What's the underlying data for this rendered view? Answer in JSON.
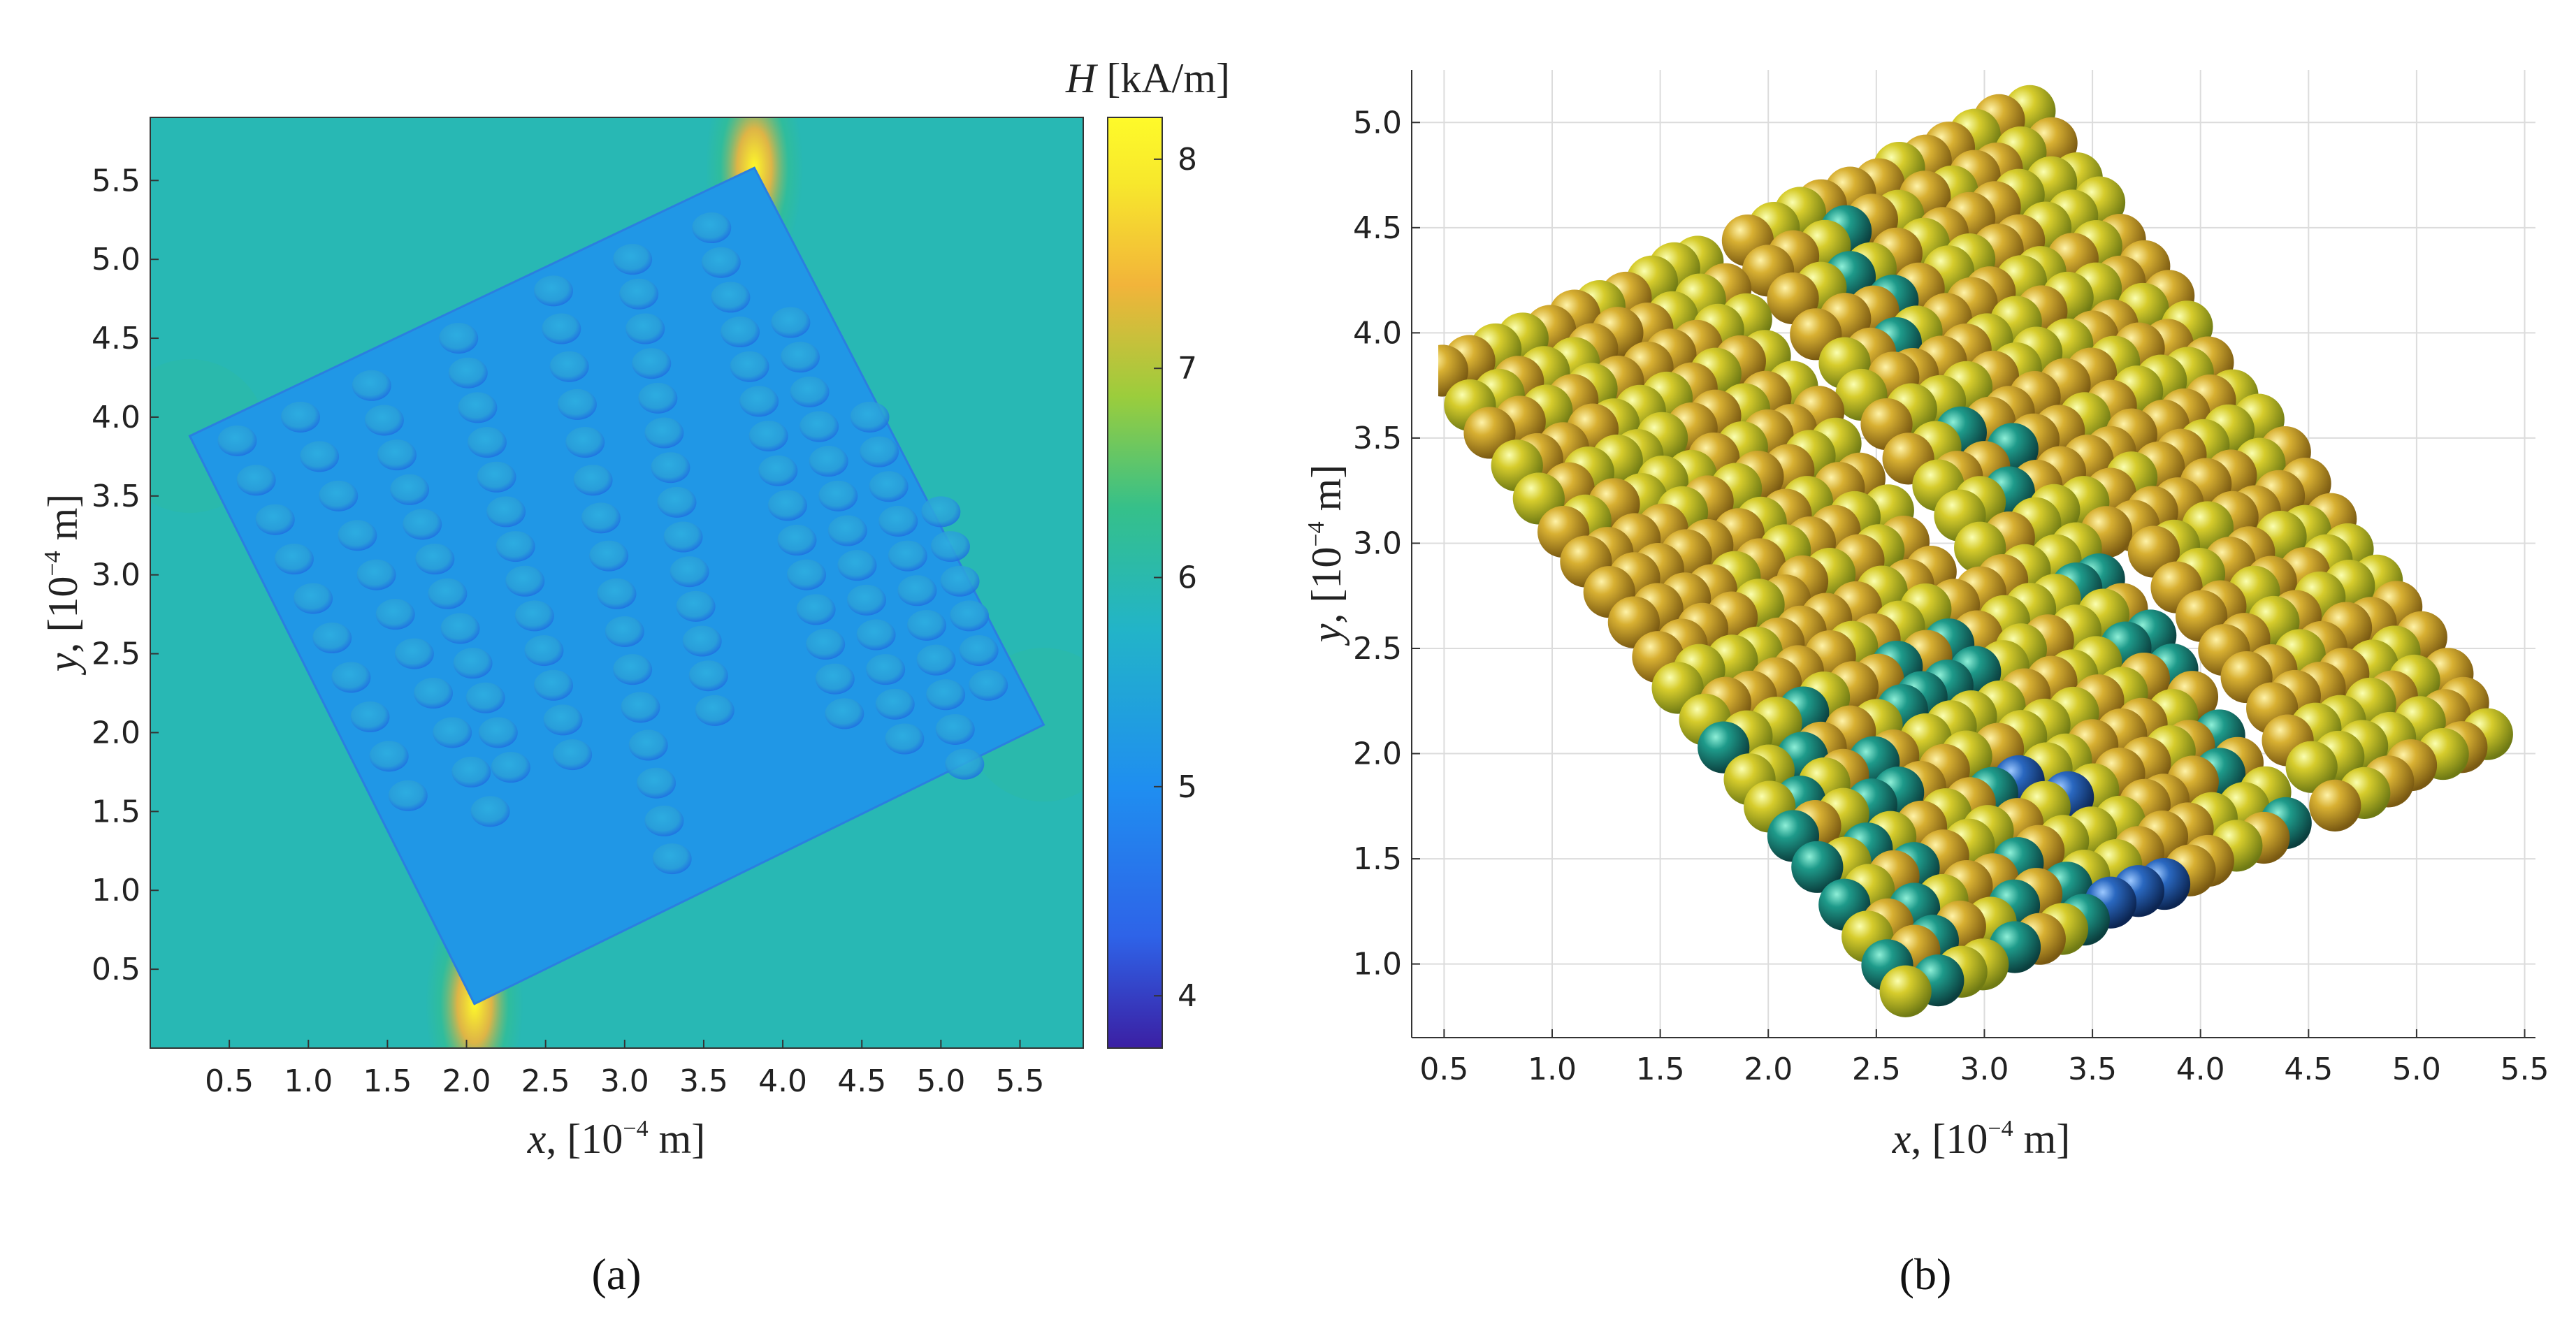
{
  "chart_data": [
    {
      "id": "a",
      "type": "heatmap",
      "panel_label": "(a)",
      "title": "",
      "xlabel": {
        "var": "x",
        "prefix": ", [10",
        "exp": "−4",
        "suffix": " m]"
      },
      "ylabel": {
        "var": "y",
        "prefix": ", [10",
        "exp": "−4",
        "suffix": " m]"
      },
      "xlim": [
        0,
        5.9
      ],
      "ylim": [
        0,
        5.9
      ],
      "xticks": [
        "0.5",
        "1.0",
        "1.5",
        "2.0",
        "2.5",
        "3.0",
        "3.5",
        "4.0",
        "4.5",
        "5.0",
        "5.5"
      ],
      "yticks": [
        "0.5",
        "1.0",
        "1.5",
        "2.0",
        "2.5",
        "3.0",
        "3.5",
        "4.0",
        "4.5",
        "5.0",
        "5.5"
      ],
      "colorbar": {
        "label_var": "H",
        "label_unit": "[kA/m]",
        "min": 3.75,
        "max": 8.2,
        "ticks": [
          "4",
          "5",
          "6",
          "7",
          "8"
        ],
        "colormap": [
          "#3b1fa3",
          "#2e63e8",
          "#1f8ef0",
          "#22b4c8",
          "#35c08a",
          "#9bcd3c",
          "#f2b43a",
          "#f7e82c",
          "#fefa2a"
        ]
      },
      "background_field_kA_per_m": 5.6,
      "particle_field_kA_per_m": 5.0,
      "corner_field_peak_kA_per_m": 7.6,
      "particle_square_corners": [
        [
          0.25,
          3.88
        ],
        [
          3.82,
          5.58
        ],
        [
          5.65,
          2.05
        ],
        [
          2.05,
          0.28
        ]
      ],
      "particle_columns": [
        {
          "x_start": 0.55,
          "y_start": 3.85,
          "count": 10,
          "dx": 0.12,
          "dy": -0.25
        },
        {
          "x_start": 0.95,
          "y_start": 4.0,
          "count": 11,
          "dx": 0.12,
          "dy": -0.25
        },
        {
          "x_start": 1.4,
          "y_start": 4.2,
          "count": 12,
          "dx": 0.08,
          "dy": -0.22
        },
        {
          "x_start": 1.95,
          "y_start": 4.5,
          "count": 13,
          "dx": 0.06,
          "dy": -0.22
        },
        {
          "x_start": 2.55,
          "y_start": 4.8,
          "count": 16,
          "dx": 0.05,
          "dy": -0.24
        },
        {
          "x_start": 3.05,
          "y_start": 5.0,
          "count": 14,
          "dx": 0.04,
          "dy": -0.22
        },
        {
          "x_start": 3.55,
          "y_start": 5.2,
          "count": 15,
          "dx": 0.06,
          "dy": -0.22
        },
        {
          "x_start": 4.05,
          "y_start": 4.6,
          "count": 13,
          "dx": 0.06,
          "dy": -0.22
        },
        {
          "x_start": 4.55,
          "y_start": 4.0,
          "count": 11,
          "dx": 0.06,
          "dy": -0.22
        },
        {
          "x_start": 5.0,
          "y_start": 3.4,
          "count": 6,
          "dx": 0.06,
          "dy": -0.22
        }
      ]
    },
    {
      "id": "b",
      "type": "scatter",
      "panel_label": "(b)",
      "title": "",
      "xlabel": {
        "var": "x",
        "prefix": ", [10",
        "exp": "−4",
        "suffix": " m]"
      },
      "ylabel": {
        "var": "y",
        "prefix": ", [10",
        "exp": "−4",
        "suffix": " m]"
      },
      "xlim": [
        0.35,
        5.55
      ],
      "ylim": [
        0.65,
        5.25
      ],
      "xticks": [
        "0.5",
        "1.0",
        "1.5",
        "2.0",
        "2.5",
        "3.0",
        "3.5",
        "4.0",
        "4.5",
        "5.0",
        "5.5"
      ],
      "yticks": [
        "1.0",
        "1.5",
        "2.0",
        "2.5",
        "3.0",
        "3.5",
        "4.0",
        "4.5",
        "5.0"
      ],
      "grid": true,
      "marker_diameter_data_units": 0.24,
      "particle_square_corners": [
        [
          0.4,
          3.85
        ],
        [
          3.2,
          5.15
        ],
        [
          5.45,
          2.05
        ],
        [
          2.65,
          0.75
        ]
      ],
      "gaps": [
        {
          "u_from": 0.44,
          "u_to": 0.5,
          "v_from": 0.0,
          "v_to": 0.52
        },
        {
          "u_from": 0.66,
          "u_to": 0.7,
          "v_from": 0.55,
          "v_to": 1.0
        }
      ],
      "grid_counts": {
        "along_top_edge": 24,
        "along_side_edge": 21
      },
      "colors": {
        "gold": "#c89a2a",
        "yellow": "#d8c030",
        "teal": "#1e8f8a",
        "blue": "#1f5fb0"
      }
    }
  ]
}
